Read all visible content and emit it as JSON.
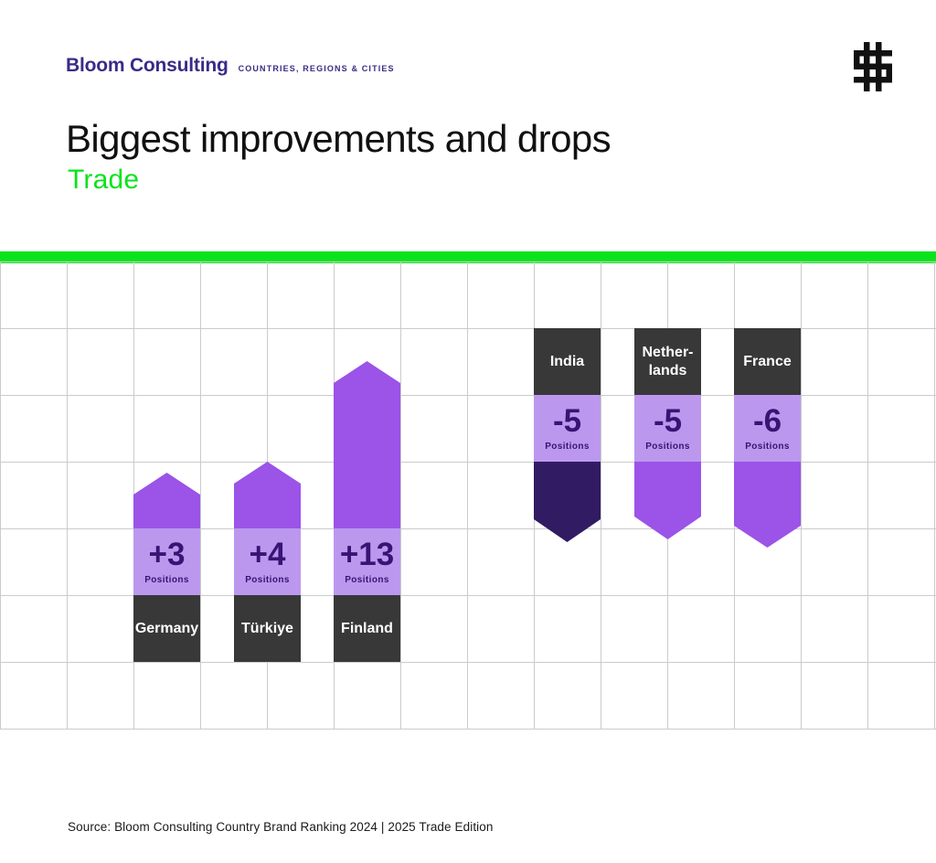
{
  "brand": {
    "name": "Bloom Consulting",
    "tagline": "COUNTRIES, REGIONS & CITIES"
  },
  "icons": {
    "brand_mark": "dollar-sign-icon"
  },
  "header": {
    "title": "Biggest improvements and drops",
    "subtitle": "Trade"
  },
  "chart_data": {
    "type": "bar",
    "title": "Biggest improvements and drops",
    "subtitle": "Trade",
    "unit_label": "Positions",
    "legend": false,
    "grid": true,
    "series": [
      {
        "name": "Biggest improvements",
        "direction": "up",
        "items": [
          {
            "country": "Germany",
            "country_lines": [
              "Germany"
            ],
            "change": 3,
            "value_label": "+3"
          },
          {
            "country": "Türkiye",
            "country_lines": [
              "Türkiye"
            ],
            "change": 4,
            "value_label": "+4"
          },
          {
            "country": "Finland",
            "country_lines": [
              "Finland"
            ],
            "change": 13,
            "value_label": "+13"
          }
        ]
      },
      {
        "name": "Biggest drops",
        "direction": "down",
        "items": [
          {
            "country": "India",
            "country_lines": [
              "India"
            ],
            "change": -5,
            "value_label": "-5"
          },
          {
            "country": "Netherlands",
            "country_lines": [
              "Nether-",
              "lands"
            ],
            "change": -5,
            "value_label": "-5"
          },
          {
            "country": "France",
            "country_lines": [
              "France"
            ],
            "change": -6,
            "value_label": "-6"
          }
        ]
      }
    ]
  },
  "footer": {
    "source": "Source: Bloom Consulting Country Brand Ranking 2024 | 2025 Trade Edition"
  },
  "colors": {
    "accent_green": "#09E31C",
    "arrow_purple": "#9B53E8",
    "light_purple": "#BB98EE",
    "deep_purple": "#311B63",
    "value_text_purple": "#3A1374",
    "label_box_dark": "#383838",
    "brand_indigo": "#3A2B86",
    "grid_line": "#CBCBCB",
    "title_black": "#111111"
  }
}
